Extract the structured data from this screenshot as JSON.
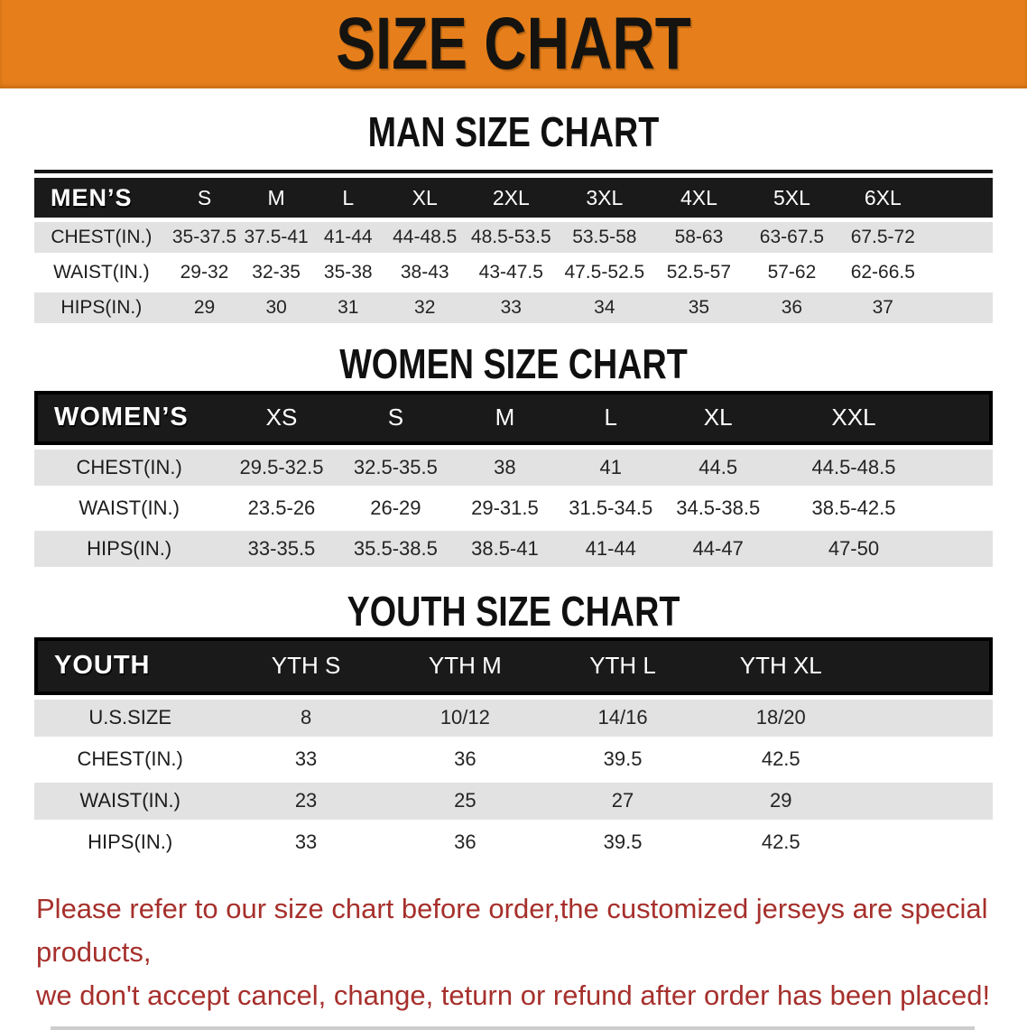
{
  "banner": {
    "title": "SIZE CHART"
  },
  "colors": {
    "banner_bg": "#E67F1B",
    "header_bar_bg": "#1A1A1A",
    "row_alt_bg": "#E2E2E2",
    "note_red": "#A6302C"
  },
  "tables": [
    {
      "id": "men",
      "heading": "MAN SIZE CHART",
      "label": "MEN’S",
      "sizes": [
        "S",
        "M",
        "L",
        "XL",
        "2XL",
        "3XL",
        "4XL",
        "5XL",
        "6XL"
      ],
      "rows": [
        {
          "label": "CHEST(IN.)",
          "values": [
            "35-37.5",
            "37.5-41",
            "41-44",
            "44-48.5",
            "48.5-53.5",
            "53.5-58",
            "58-63",
            "63-67.5",
            "67.5-72"
          ]
        },
        {
          "label": "WAIST(IN.)",
          "values": [
            "29-32",
            "32-35",
            "35-38",
            "38-43",
            "43-47.5",
            "47.5-52.5",
            "52.5-57",
            "57-62",
            "62-66.5"
          ]
        },
        {
          "label": "HIPS(IN.)",
          "values": [
            "29",
            "30",
            "31",
            "32",
            "33",
            "34",
            "35",
            "36",
            "37"
          ]
        }
      ]
    },
    {
      "id": "women",
      "heading": "WOMEN SIZE CHART",
      "label": "WOMEN’S",
      "sizes": [
        "XS",
        "S",
        "M",
        "L",
        "XL",
        "XXL"
      ],
      "rows": [
        {
          "label": "CHEST(IN.)",
          "values": [
            "29.5-32.5",
            "32.5-35.5",
            "38",
            "41",
            "44.5",
            "44.5-48.5"
          ]
        },
        {
          "label": "WAIST(IN.)",
          "values": [
            "23.5-26",
            "26-29",
            "29-31.5",
            "31.5-34.5",
            "34.5-38.5",
            "38.5-42.5"
          ]
        },
        {
          "label": "HIPS(IN.)",
          "values": [
            "33-35.5",
            "35.5-38.5",
            "38.5-41",
            "41-44",
            "44-47",
            "47-50"
          ]
        }
      ]
    },
    {
      "id": "youth",
      "heading": "YOUTH SIZE CHART",
      "label": "YOUTH",
      "sizes": [
        "YTH S",
        "YTH M",
        "YTH L",
        "YTH XL"
      ],
      "rows": [
        {
          "label": "U.S.SIZE",
          "values": [
            "8",
            "10/12",
            "14/16",
            "18/20"
          ]
        },
        {
          "label": "CHEST(IN.)",
          "values": [
            "33",
            "36",
            "39.5",
            "42.5"
          ]
        },
        {
          "label": "WAIST(IN.)",
          "values": [
            "23",
            "25",
            "27",
            "29"
          ]
        },
        {
          "label": "HIPS(IN.)",
          "values": [
            "33",
            "36",
            "39.5",
            "42.5"
          ]
        }
      ]
    }
  ],
  "note": {
    "line1": "Please refer to our size chart before order,the customized jerseys are special products,",
    "line2": "we don't accept cancel, change, teturn or refund after order has been placed!"
  }
}
